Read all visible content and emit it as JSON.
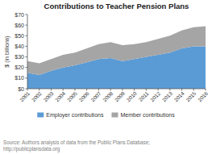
{
  "chart_data": {
    "type": "area",
    "stacked": true,
    "title": "Contributions to Teacher Pension Plans",
    "y_label": "$ (in billions)",
    "x": [
      2001,
      2002,
      2003,
      2004,
      2005,
      2006,
      2007,
      2008,
      2009,
      2010,
      2011,
      2012,
      2013,
      2014,
      2015,
      2016
    ],
    "series": [
      {
        "name": "Employer contributions",
        "color": "#5b9bd5",
        "values": [
          15,
          13,
          17,
          20,
          22,
          25,
          28,
          29,
          26,
          28,
          30,
          32,
          34,
          38,
          40,
          40
        ]
      },
      {
        "name": "Member contributions",
        "color": "#a5a5a5",
        "values": [
          11,
          11,
          11,
          12,
          12,
          13,
          14,
          15,
          15,
          14,
          14,
          15,
          16,
          17,
          18,
          19
        ]
      }
    ],
    "xlim": [
      2001,
      2016
    ],
    "xticks": [
      2001,
      2002,
      2003,
      2004,
      2005,
      2006,
      2007,
      2008,
      2009,
      2010,
      2011,
      2012,
      2013,
      2014,
      2015,
      2016
    ],
    "ylim": [
      0,
      70
    ],
    "yticks": [
      {
        "value": 0,
        "label": "$0"
      },
      {
        "value": 10,
        "label": "$10"
      },
      {
        "value": 20,
        "label": "$20"
      },
      {
        "value": 30,
        "label": "$30"
      },
      {
        "value": 40,
        "label": "$40"
      },
      {
        "value": 50,
        "label": "$50"
      },
      {
        "value": 60,
        "label": "$60"
      },
      {
        "value": 70,
        "label": "$70"
      }
    ],
    "grid": false,
    "legend": "bottom",
    "annotations": [
      "Source: Authors analysis of data from the Public Plans Database;\nhttp://publicplansdata.org"
    ]
  }
}
